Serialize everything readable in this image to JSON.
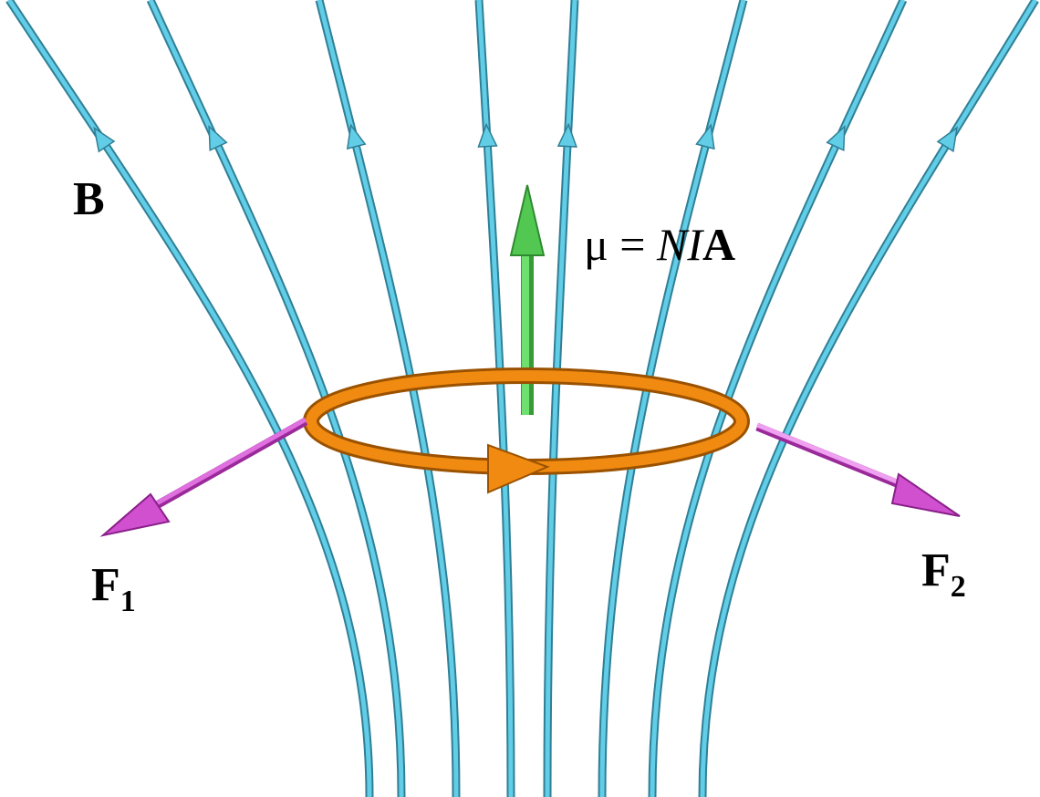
{
  "labels": {
    "field": "B",
    "moment": [
      "μ = ",
      "NI",
      "A"
    ],
    "force1": [
      "F",
      "1"
    ],
    "force2": [
      "F",
      "2"
    ]
  }
}
